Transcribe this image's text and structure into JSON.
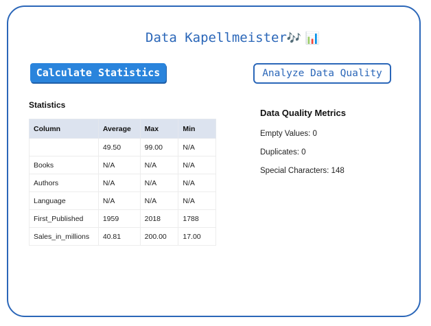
{
  "app": {
    "title": "Data Kapellmeister",
    "title_emoji": "🎶 📊"
  },
  "buttons": {
    "calculate_label": "Calculate Statistics",
    "analyze_label": "Analyze Data Quality"
  },
  "statistics": {
    "heading": "Statistics",
    "columns": [
      "Column",
      "Average",
      "Max",
      "Min"
    ],
    "rows": [
      [
        "",
        "49.50",
        "99.00",
        "N/A"
      ],
      [
        "Books",
        "N/A",
        "N/A",
        "N/A"
      ],
      [
        "Authors",
        "N/A",
        "N/A",
        "N/A"
      ],
      [
        "Language",
        "N/A",
        "N/A",
        "N/A"
      ],
      [
        "First_Published",
        "1959",
        "2018",
        "1788"
      ],
      [
        "Sales_in_millions",
        "40.81",
        "200.00",
        "17.00"
      ]
    ]
  },
  "data_quality": {
    "heading": "Data Quality Metrics",
    "empty_values": "Empty Values: 0",
    "duplicates": "Duplicates: 0",
    "special_characters": "Special Characters: 148"
  },
  "colors": {
    "accent": "#2a66b8",
    "button_fill": "#2a84dc",
    "table_header": "#dce3ef"
  }
}
